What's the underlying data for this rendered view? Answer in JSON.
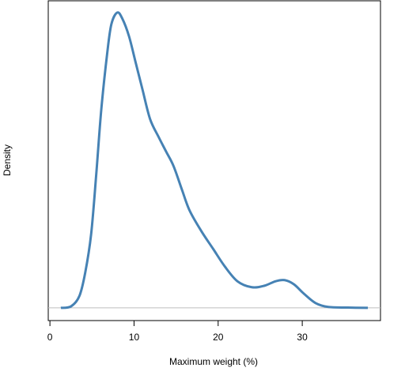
{
  "chart_data": {
    "type": "line",
    "x_label": "Maximum weight (%)",
    "y_label": "Density",
    "xlim": [
      -0.2,
      39.3
    ],
    "xticks": [
      0,
      10,
      20,
      30
    ],
    "ylim": [
      -0.0043,
      0.104
    ],
    "hline": 0,
    "hline_color": "#bebebe",
    "series": [
      {
        "color": "#4682b4",
        "x": [
          1.3,
          2.5,
          3.5,
          4.2,
          4.9,
          5.5,
          6.1,
          6.8,
          7.3,
          8.0,
          8.6,
          9.4,
          10.2,
          11.0,
          11.9,
          12.9,
          13.8,
          14.7,
          15.7,
          16.6,
          18.0,
          19.4,
          20.8,
          22.3,
          24.0,
          25.5,
          26.8,
          27.9,
          29.0,
          30.2,
          31.6,
          33.1,
          35.4,
          37.8
        ],
        "values": [
          0,
          0.0005,
          0.004,
          0.012,
          0.025,
          0.045,
          0.067,
          0.086,
          0.096,
          0.1,
          0.098,
          0.092,
          0.083,
          0.074,
          0.064,
          0.058,
          0.053,
          0.048,
          0.04,
          0.033,
          0.026,
          0.02,
          0.014,
          0.009,
          0.007,
          0.0075,
          0.009,
          0.0094,
          0.008,
          0.0048,
          0.0016,
          0.0003,
          0.0001,
          0
        ]
      }
    ]
  }
}
